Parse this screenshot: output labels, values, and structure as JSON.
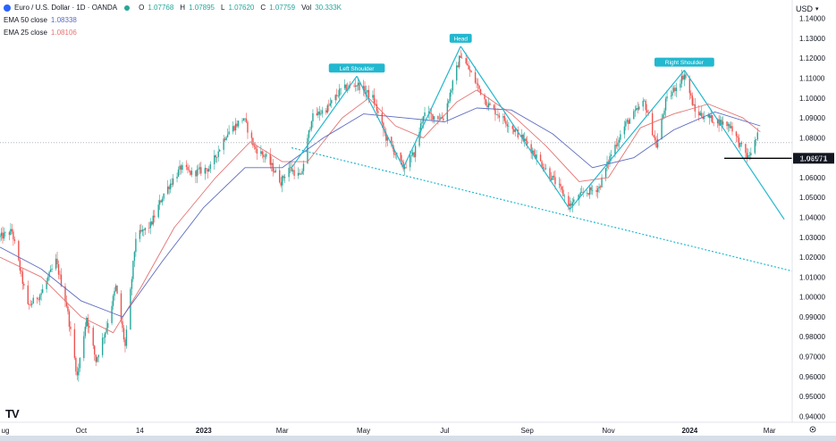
{
  "header": {
    "symbol": "Euro / U.S. Dollar · 1D · OANDA",
    "ohlc": [
      {
        "key": "O",
        "value": "1.07768"
      },
      {
        "key": "H",
        "value": "1.07895"
      },
      {
        "key": "L",
        "value": "1.07620"
      },
      {
        "key": "C",
        "value": "1.07759"
      }
    ],
    "volume_label": "Vol",
    "volume_value": "30.333K",
    "ema50_label": "EMA 50 close",
    "ema50_value": "1.08338",
    "ema25_label": "EMA 25 close",
    "ema25_value": "1.08106",
    "currency": "USD",
    "logo": "TV"
  },
  "colors": {
    "up": "#26a69a",
    "down": "#ef5350",
    "ema50": "#5c6bc0",
    "ema25": "#e57373",
    "pattern": "#22b8cf",
    "current_price_line": "#b2b5be",
    "level_line": "#000000"
  },
  "chart_data": {
    "type": "candlestick",
    "title": "",
    "ylim": [
      0.937,
      1.143
    ],
    "xlim": [
      "2022-08-01",
      "2024-03-18"
    ],
    "y_ticks": [
      "1.14000",
      "1.13000",
      "1.12000",
      "1.11000",
      "1.10000",
      "1.09000",
      "1.08000",
      "1.07000",
      "1.06000",
      "1.05000",
      "1.04000",
      "1.03000",
      "1.02000",
      "1.01000",
      "1.00000",
      "0.99000",
      "0.98000",
      "0.97000",
      "0.96000",
      "0.95000",
      "0.94000"
    ],
    "x_ticks": [
      {
        "label": "ug",
        "date": "2022-08-01",
        "bold": false
      },
      {
        "label": "Oct",
        "date": "2022-10-01",
        "bold": false
      },
      {
        "label": "14",
        "date": "2022-11-14",
        "bold": false
      },
      {
        "label": "2023",
        "date": "2023-01-01",
        "bold": true
      },
      {
        "label": "Mar",
        "date": "2023-03-01",
        "bold": false
      },
      {
        "label": "May",
        "date": "2023-05-01",
        "bold": false
      },
      {
        "label": "Jul",
        "date": "2023-07-01",
        "bold": false
      },
      {
        "label": "Sep",
        "date": "2023-09-01",
        "bold": false
      },
      {
        "label": "Nov",
        "date": "2023-11-01",
        "bold": false
      },
      {
        "label": "2024",
        "date": "2024-01-01",
        "bold": true
      },
      {
        "label": "Mar",
        "date": "2024-03-01",
        "bold": false
      }
    ],
    "price_path": [
      [
        "2022-08-01",
        1.03
      ],
      [
        "2022-08-10",
        1.033
      ],
      [
        "2022-08-22",
        0.995
      ],
      [
        "2022-09-01",
        1.002
      ],
      [
        "2022-09-12",
        1.018
      ],
      [
        "2022-09-20",
        0.996
      ],
      [
        "2022-09-28",
        0.96
      ],
      [
        "2022-10-05",
        0.99
      ],
      [
        "2022-10-12",
        0.968
      ],
      [
        "2022-10-20",
        0.985
      ],
      [
        "2022-10-27",
        1.005
      ],
      [
        "2022-11-03",
        0.975
      ],
      [
        "2022-11-11",
        1.03
      ],
      [
        "2022-11-22",
        1.036
      ],
      [
        "2022-12-02",
        1.052
      ],
      [
        "2022-12-15",
        1.065
      ],
      [
        "2022-12-23",
        1.062
      ],
      [
        "2023-01-06",
        1.065
      ],
      [
        "2023-01-18",
        1.082
      ],
      [
        "2023-01-31",
        1.09
      ],
      [
        "2023-02-08",
        1.075
      ],
      [
        "2023-02-17",
        1.07
      ],
      [
        "2023-02-28",
        1.058
      ],
      [
        "2023-03-06",
        1.065
      ],
      [
        "2023-03-15",
        1.06
      ],
      [
        "2023-03-23",
        1.09
      ],
      [
        "2023-04-04",
        1.095
      ],
      [
        "2023-04-14",
        1.104
      ],
      [
        "2023-04-26",
        1.107
      ],
      [
        "2023-05-08",
        1.1
      ],
      [
        "2023-05-18",
        1.08
      ],
      [
        "2023-05-31",
        1.065
      ],
      [
        "2023-06-08",
        1.072
      ],
      [
        "2023-06-15",
        1.092
      ],
      [
        "2023-06-30",
        1.09
      ],
      [
        "2023-07-13",
        1.122
      ],
      [
        "2023-07-21",
        1.112
      ],
      [
        "2023-08-02",
        1.097
      ],
      [
        "2023-08-18",
        1.087
      ],
      [
        "2023-09-01",
        1.077
      ],
      [
        "2023-09-14",
        1.065
      ],
      [
        "2023-09-25",
        1.055
      ],
      [
        "2023-10-03",
        1.046
      ],
      [
        "2023-10-13",
        1.052
      ],
      [
        "2023-10-25",
        1.055
      ],
      [
        "2023-11-03",
        1.072
      ],
      [
        "2023-11-14",
        1.087
      ],
      [
        "2023-11-28",
        1.098
      ],
      [
        "2023-12-07",
        1.076
      ],
      [
        "2023-12-14",
        1.098
      ],
      [
        "2023-12-28",
        1.112
      ],
      [
        "2024-01-05",
        1.093
      ],
      [
        "2024-01-19",
        1.089
      ],
      [
        "2024-02-01",
        1.086
      ],
      [
        "2024-02-08",
        1.076
      ],
      [
        "2024-02-14",
        1.07
      ],
      [
        "2024-02-21",
        1.081
      ]
    ],
    "series": [
      {
        "name": "EMA 25 close",
        "key": "ema25",
        "path": [
          [
            "2022-08-01",
            1.02
          ],
          [
            "2022-09-01",
            1.01
          ],
          [
            "2022-10-01",
            0.99
          ],
          [
            "2022-10-25",
            0.982
          ],
          [
            "2022-11-15",
            1.005
          ],
          [
            "2022-12-10",
            1.035
          ],
          [
            "2023-01-10",
            1.06
          ],
          [
            "2023-02-05",
            1.078
          ],
          [
            "2023-03-01",
            1.068
          ],
          [
            "2023-03-20",
            1.068
          ],
          [
            "2023-04-15",
            1.09
          ],
          [
            "2023-05-05",
            1.1
          ],
          [
            "2023-05-25",
            1.086
          ],
          [
            "2023-06-15",
            1.08
          ],
          [
            "2023-07-10",
            1.098
          ],
          [
            "2023-07-25",
            1.104
          ],
          [
            "2023-08-20",
            1.092
          ],
          [
            "2023-09-15",
            1.076
          ],
          [
            "2023-10-10",
            1.058
          ],
          [
            "2023-11-01",
            1.06
          ],
          [
            "2023-11-25",
            1.085
          ],
          [
            "2023-12-20",
            1.092
          ],
          [
            "2024-01-15",
            1.097
          ],
          [
            "2024-02-10",
            1.09
          ],
          [
            "2024-02-23",
            1.083
          ]
        ]
      },
      {
        "name": "EMA 50 close",
        "key": "ema50",
        "path": [
          [
            "2022-08-01",
            1.025
          ],
          [
            "2022-09-01",
            1.014
          ],
          [
            "2022-10-01",
            0.998
          ],
          [
            "2022-11-01",
            0.99
          ],
          [
            "2022-12-01",
            1.018
          ],
          [
            "2023-01-01",
            1.045
          ],
          [
            "2023-02-01",
            1.065
          ],
          [
            "2023-03-01",
            1.065
          ],
          [
            "2023-04-01",
            1.08
          ],
          [
            "2023-05-01",
            1.092
          ],
          [
            "2023-06-01",
            1.09
          ],
          [
            "2023-07-01",
            1.088
          ],
          [
            "2023-07-25",
            1.095
          ],
          [
            "2023-08-20",
            1.094
          ],
          [
            "2023-09-20",
            1.082
          ],
          [
            "2023-10-20",
            1.065
          ],
          [
            "2023-11-20",
            1.07
          ],
          [
            "2023-12-20",
            1.084
          ],
          [
            "2024-01-20",
            1.093
          ],
          [
            "2024-02-23",
            1.086
          ]
        ]
      }
    ],
    "pattern_lines": [
      [
        [
          "2023-03-08",
          1.065
        ],
        [
          "2023-04-26",
          1.111
        ]
      ],
      [
        [
          "2023-04-26",
          1.111
        ],
        [
          "2023-05-31",
          1.065
        ]
      ],
      [
        [
          "2023-05-31",
          1.065
        ],
        [
          "2023-07-13",
          1.126
        ]
      ],
      [
        [
          "2023-07-13",
          1.126
        ],
        [
          "2023-10-03",
          1.044
        ]
      ],
      [
        [
          "2023-10-03",
          1.044
        ],
        [
          "2023-12-28",
          1.114
        ]
      ],
      [
        [
          "2023-12-28",
          1.114
        ],
        [
          "2024-03-12",
          1.039
        ]
      ]
    ],
    "neckline": [
      [
        "2023-03-08",
        1.075
      ],
      [
        "2024-03-18",
        1.013
      ]
    ],
    "annotations": [
      {
        "text": "Left Shoulder",
        "date": "2023-04-26",
        "price": 1.111
      },
      {
        "text": "Head",
        "date": "2023-07-13",
        "price": 1.126
      },
      {
        "text": "Right Shoulder",
        "date": "2023-12-28",
        "price": 1.114
      }
    ],
    "current_price": 1.0776,
    "horizontal_level": {
      "price": 1.06971,
      "label": "1.06971",
      "start_date": "2024-01-27"
    }
  }
}
